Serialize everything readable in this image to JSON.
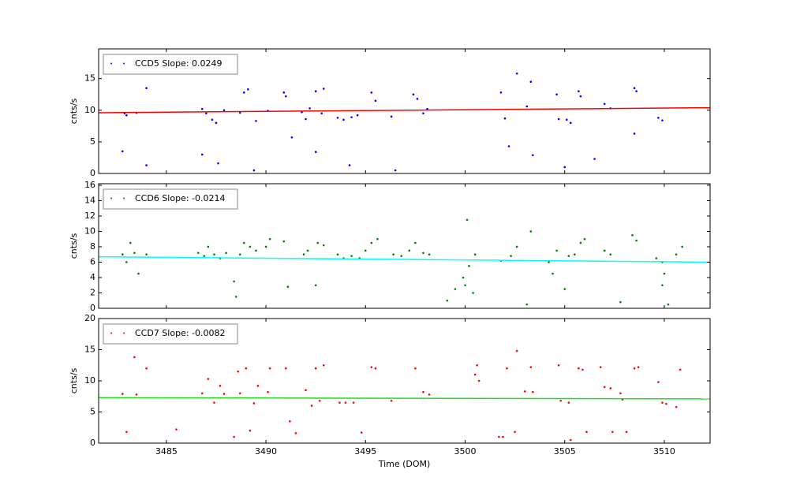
{
  "chart_data": [
    {
      "type": "scatter",
      "ylabel": "cnts/s",
      "xlim": [
        3481.6,
        3512.3
      ],
      "xticks": [
        3485,
        3490,
        3495,
        3500,
        3505,
        3510
      ],
      "xtick_labels": false,
      "ylim": [
        0,
        19.7
      ],
      "yticks": [
        0,
        5,
        10,
        15
      ],
      "legend": "upper left",
      "series": [
        {
          "name": "CCD5 Slope: 0.0249",
          "color": "#0000ff",
          "x": [
            3482.9,
            3483.0,
            3483.5,
            3484.0,
            3486.8,
            3487.0,
            3487.3,
            3487.5,
            3487.9,
            3488.7,
            3488.9,
            3489.1,
            3489.5,
            3490.1,
            3490.9,
            3491.0,
            3491.8,
            3492.0,
            3492.2,
            3492.5,
            3492.8,
            3492.9,
            3493.6,
            3493.9,
            3494.3,
            3494.6,
            3495.3,
            3495.5,
            3496.3,
            3497.4,
            3497.6,
            3497.9,
            3498.1,
            3501.8,
            3502.0,
            3502.6,
            3503.1,
            3503.3,
            3504.6,
            3504.7,
            3505.1,
            3505.3,
            3505.7,
            3505.8,
            3507.0,
            3507.3,
            3508.5,
            3508.6,
            3509.7,
            3509.9,
            3482.8,
            3484.0,
            3486.8,
            3487.6,
            3489.4,
            3491.3,
            3492.5,
            3494.2,
            3496.5,
            3502.2,
            3503.4,
            3505.0,
            3506.5,
            3508.5
          ],
          "values": [
            9.5,
            9.2,
            9.6,
            13.5,
            10.2,
            9.5,
            8.5,
            8.0,
            10.0,
            9.6,
            12.8,
            13.3,
            8.3,
            9.9,
            12.8,
            12.2,
            9.7,
            8.6,
            10.3,
            13.0,
            9.5,
            13.4,
            8.8,
            8.5,
            8.9,
            9.2,
            12.8,
            11.5,
            9.0,
            12.5,
            11.8,
            9.5,
            10.2,
            12.8,
            8.7,
            15.8,
            10.6,
            14.5,
            12.5,
            8.6,
            8.5,
            8.0,
            13.0,
            12.2,
            11.0,
            10.3,
            13.5,
            13.0,
            8.8,
            8.4,
            3.5,
            1.3,
            3.0,
            1.6,
            0.5,
            5.7,
            3.4,
            1.3,
            0.5,
            4.3,
            2.9,
            1.0,
            2.3,
            6.3
          ]
        }
      ],
      "fit": {
        "color": "#ff0000",
        "x": [
          3481.6,
          3512.3
        ],
        "values": [
          9.6,
          10.4
        ]
      }
    },
    {
      "type": "scatter",
      "ylabel": "cnts/s",
      "xlim": [
        3481.6,
        3512.3
      ],
      "xticks": [
        3485,
        3490,
        3495,
        3500,
        3505,
        3510
      ],
      "xtick_labels": false,
      "ylim": [
        0,
        16.2
      ],
      "yticks": [
        0,
        2,
        4,
        6,
        8,
        10,
        12,
        14,
        16
      ],
      "legend": "upper left",
      "series": [
        {
          "name": "CCD6 Slope: -0.0214",
          "color": "#008000",
          "x": [
            3482.8,
            3483.0,
            3483.2,
            3483.4,
            3483.6,
            3484.0,
            3486.6,
            3486.9,
            3487.1,
            3487.4,
            3487.7,
            3488.0,
            3488.4,
            3488.5,
            3488.7,
            3488.9,
            3489.2,
            3489.5,
            3490.0,
            3490.2,
            3490.9,
            3491.1,
            3491.9,
            3492.1,
            3492.5,
            3492.6,
            3492.9,
            3493.6,
            3493.9,
            3494.3,
            3494.7,
            3495.0,
            3495.3,
            3495.6,
            3496.4,
            3496.8,
            3497.2,
            3497.5,
            3497.9,
            3498.2,
            3499.1,
            3499.5,
            3499.9,
            3500.0,
            3500.2,
            3500.4,
            3500.5,
            3500.1,
            3501.8,
            3502.3,
            3502.6,
            3503.1,
            3503.3,
            3504.2,
            3504.4,
            3504.6,
            3505.0,
            3505.2,
            3505.5,
            3505.8,
            3506.0,
            3507.0,
            3507.3,
            3507.8,
            3508.4,
            3508.6,
            3509.6,
            3509.9,
            3510.0,
            3510.2,
            3510.6,
            3510.9,
            3509.9
          ],
          "values": [
            7.0,
            6.0,
            8.5,
            7.2,
            4.5,
            7.0,
            7.2,
            6.8,
            8.0,
            7.0,
            6.5,
            7.2,
            3.5,
            1.5,
            7.0,
            8.5,
            8.0,
            7.5,
            8.0,
            9.0,
            8.7,
            2.8,
            7.0,
            7.5,
            3.0,
            8.5,
            8.2,
            7.0,
            6.5,
            6.8,
            6.5,
            7.5,
            8.5,
            9.0,
            7.0,
            6.8,
            7.5,
            8.5,
            7.2,
            7.0,
            1.0,
            2.5,
            4.0,
            3.0,
            5.5,
            2.0,
            7.0,
            11.5,
            6.2,
            6.8,
            8.0,
            0.5,
            10.0,
            6.0,
            4.5,
            7.5,
            2.5,
            6.8,
            7.0,
            8.5,
            9.0,
            7.5,
            7.0,
            0.8,
            9.5,
            8.8,
            6.5,
            6.0,
            4.5,
            0.5,
            7.0,
            8.0,
            3.0
          ]
        }
      ],
      "fit": {
        "color": "#00ffff",
        "x": [
          3481.6,
          3512.3
        ],
        "values": [
          6.7,
          6.0
        ]
      }
    },
    {
      "type": "scatter",
      "ylabel": "cnts/s",
      "xlabel": "Time (DOM)",
      "xlim": [
        3481.6,
        3512.3
      ],
      "xticks": [
        3485,
        3490,
        3495,
        3500,
        3505,
        3510
      ],
      "xtick_labels": true,
      "ylim": [
        0,
        20
      ],
      "yticks": [
        0,
        5,
        10,
        15,
        20
      ],
      "legend": "upper left",
      "series": [
        {
          "name": "CCD7 Slope: -0.0082",
          "color": "#ff0000",
          "x": [
            3482.8,
            3483.0,
            3483.4,
            3483.5,
            3484.0,
            3485.5,
            3486.8,
            3487.1,
            3487.4,
            3487.7,
            3487.9,
            3488.4,
            3488.6,
            3488.7,
            3489.0,
            3489.2,
            3489.4,
            3489.6,
            3490.1,
            3490.2,
            3491.0,
            3491.2,
            3491.5,
            3492.0,
            3492.3,
            3492.5,
            3492.7,
            3492.9,
            3493.7,
            3494.0,
            3494.4,
            3494.8,
            3495.3,
            3495.5,
            3496.3,
            3497.5,
            3497.9,
            3498.2,
            3501.7,
            3501.9,
            3502.1,
            3502.5,
            3502.6,
            3503.0,
            3503.3,
            3503.4,
            3504.7,
            3504.8,
            3505.2,
            3505.3,
            3505.7,
            3505.9,
            3506.1,
            3506.8,
            3507.0,
            3507.3,
            3507.4,
            3507.8,
            3507.9,
            3508.1,
            3508.5,
            3508.7,
            3509.7,
            3509.9,
            3510.1,
            3510.6,
            3510.8,
            3500.5,
            3500.6,
            3500.7
          ],
          "values": [
            7.9,
            1.8,
            13.8,
            7.8,
            12.0,
            2.2,
            8.0,
            10.3,
            6.5,
            9.2,
            7.9,
            1.0,
            11.5,
            8.0,
            12.0,
            2.0,
            6.4,
            9.2,
            8.2,
            12.0,
            12.0,
            3.5,
            1.6,
            8.5,
            6.0,
            12.0,
            6.8,
            12.5,
            6.5,
            6.5,
            6.5,
            1.7,
            12.2,
            12.0,
            6.8,
            12.0,
            8.2,
            7.8,
            1.0,
            1.0,
            12.0,
            1.8,
            14.8,
            8.3,
            12.2,
            8.2,
            12.5,
            6.8,
            6.5,
            0.5,
            12.0,
            11.8,
            1.8,
            12.2,
            9.0,
            8.8,
            1.8,
            8.0,
            7.0,
            1.8,
            12.0,
            12.2,
            9.8,
            6.5,
            6.3,
            5.8,
            11.8,
            11.0,
            12.5,
            10.0
          ]
        }
      ],
      "fit": {
        "color": "#22dd22",
        "x": [
          3481.6,
          3512.3
        ],
        "values": [
          7.3,
          7.1
        ]
      }
    }
  ]
}
